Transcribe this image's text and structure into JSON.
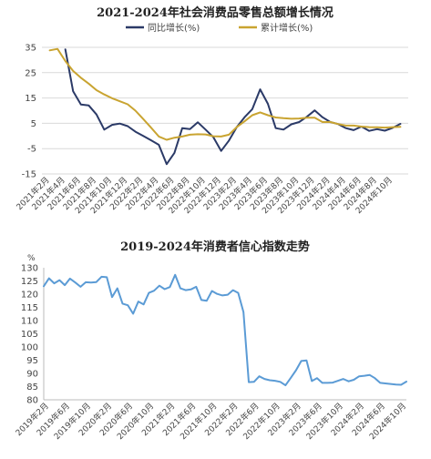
{
  "chart_data": [
    {
      "type": "line",
      "title": "2021-2024年社会消费品零售总额增长情况",
      "ylim": [
        -15,
        35
      ],
      "yticks": [
        -15,
        -5,
        5,
        15,
        25,
        35
      ],
      "grid": true,
      "legend_position": "top",
      "xtick_labels": [
        "2021年2月",
        "2021年4月",
        "2021年6月",
        "2021年8月",
        "2021年10月",
        "2021年12月",
        "2022年2月",
        "2022年4月",
        "2022年6月",
        "2022年8月",
        "2022年10月",
        "2022年12月",
        "2023年2月",
        "2023年4月",
        "2023年6月",
        "2023年8月",
        "2023年10月",
        "2023年12月",
        "2024年2月",
        "2024年4月",
        "2024年6月",
        "2024年8月",
        "2024年10月"
      ],
      "series": [
        {
          "name": "同比增长(%)",
          "color": "#2b3a67",
          "x": [
            "2021-04",
            "2021-05",
            "2021-06",
            "2021-07",
            "2021-08",
            "2021-09",
            "2021-10",
            "2021-11",
            "2021-12",
            "2022-01",
            "2022-02",
            "2022-03",
            "2022-04",
            "2022-05",
            "2022-06",
            "2022-07",
            "2022-08",
            "2022-09",
            "2022-10",
            "2022-11",
            "2022-12",
            "2023-01",
            "2023-02",
            "2023-03",
            "2023-04",
            "2023-05",
            "2023-06",
            "2023-07",
            "2023-08",
            "2023-09",
            "2023-10",
            "2023-11",
            "2023-12",
            "2024-01",
            "2024-02",
            "2024-03",
            "2024-04",
            "2024-05",
            "2024-06",
            "2024-07",
            "2024-08",
            "2024-09",
            "2024-10",
            "2024-11"
          ],
          "values": [
            34.2,
            17.7,
            12.4,
            12.1,
            8.5,
            2.5,
            4.4,
            4.9,
            3.9,
            1.7,
            0,
            -1.7,
            -3.5,
            -11.1,
            -6.7,
            3.1,
            2.7,
            5.4,
            2.5,
            -0.5,
            -5.9,
            -1.8,
            3.5,
            7.4,
            10.6,
            18.4,
            12.7,
            3.1,
            2.5,
            4.6,
            5.5,
            7.6,
            10.1,
            7.4,
            5.5,
            4.7,
            3.1,
            2.3,
            3.7,
            2.0,
            2.7,
            2.1,
            3.2,
            4.8
          ]
        },
        {
          "name": "累计增长(%)",
          "color": "#c9a431",
          "x": [
            "2021-02",
            "2021-03",
            "2021-04",
            "2021-05",
            "2021-06",
            "2021-07",
            "2021-08",
            "2021-09",
            "2021-10",
            "2021-11",
            "2021-12",
            "2022-01",
            "2022-02",
            "2022-03",
            "2022-04",
            "2022-05",
            "2022-06",
            "2022-07",
            "2022-08",
            "2022-09",
            "2022-10",
            "2022-11",
            "2022-12",
            "2023-01",
            "2023-02",
            "2023-03",
            "2023-04",
            "2023-05",
            "2023-06",
            "2023-07",
            "2023-08",
            "2023-09",
            "2023-10",
            "2023-11",
            "2023-12",
            "2024-01",
            "2024-02",
            "2024-03",
            "2024-04",
            "2024-05",
            "2024-06",
            "2024-07",
            "2024-08",
            "2024-09",
            "2024-10",
            "2024-11"
          ],
          "values": [
            33.8,
            34.4,
            29.6,
            25.7,
            23.0,
            20.7,
            18.1,
            16.4,
            14.9,
            13.7,
            12.5,
            10.0,
            6.7,
            3.3,
            -0.2,
            -1.5,
            -0.7,
            -0.2,
            0.5,
            0.7,
            0.6,
            -0.1,
            -0.2,
            0.5,
            3.5,
            5.8,
            8.2,
            9.3,
            8.2,
            7.3,
            7.0,
            6.8,
            6.9,
            7.2,
            7.2,
            5.5,
            5.5,
            4.7,
            4.1,
            4.1,
            3.7,
            3.5,
            3.4,
            3.3,
            3.5,
            3.6
          ]
        }
      ]
    },
    {
      "type": "line",
      "title": "2019-2024年消费者信心指数走势",
      "ylabel": "%",
      "ylim": [
        80,
        130
      ],
      "yticks": [
        80,
        85,
        90,
        95,
        100,
        105,
        110,
        115,
        120,
        125,
        130
      ],
      "grid": false,
      "xtick_labels": [
        "2019年2月",
        "2019年6月",
        "2019年10月",
        "2020年2月",
        "2020年6月",
        "2020年10月",
        "2021年2月",
        "2021年6月",
        "2021年10月",
        "2022年2月",
        "2022年6月",
        "2022年10月",
        "2023年2月",
        "2023年6月",
        "2023年10月",
        "2024年2月",
        "2024年6月",
        "2024年10月"
      ],
      "series": [
        {
          "name": "",
          "color": "#5b9bd5",
          "x": [
            "2019-01",
            "2019-02",
            "2019-03",
            "2019-04",
            "2019-05",
            "2019-06",
            "2019-07",
            "2019-08",
            "2019-09",
            "2019-10",
            "2019-11",
            "2019-12",
            "2020-01",
            "2020-02",
            "2020-03",
            "2020-04",
            "2020-05",
            "2020-06",
            "2020-07",
            "2020-08",
            "2020-09",
            "2020-10",
            "2020-11",
            "2020-12",
            "2021-01",
            "2021-02",
            "2021-03",
            "2021-04",
            "2021-05",
            "2021-06",
            "2021-07",
            "2021-08",
            "2021-09",
            "2021-10",
            "2021-11",
            "2021-12",
            "2022-01",
            "2022-02",
            "2022-03",
            "2022-04",
            "2022-05",
            "2022-06",
            "2022-07",
            "2022-08",
            "2022-09",
            "2022-10",
            "2022-11",
            "2022-12",
            "2023-01",
            "2023-02",
            "2023-03",
            "2023-04",
            "2023-05",
            "2023-06",
            "2023-07",
            "2023-08",
            "2023-09",
            "2023-10",
            "2023-11",
            "2023-12",
            "2024-01",
            "2024-02",
            "2024-03",
            "2024-04",
            "2024-05",
            "2024-06",
            "2024-07",
            "2024-08",
            "2024-09",
            "2024-10"
          ],
          "values": [
            123.0,
            126.0,
            124.1,
            125.3,
            123.4,
            125.9,
            124.4,
            122.8,
            124.5,
            124.4,
            124.6,
            126.6,
            126.4,
            118.9,
            122.2,
            116.4,
            115.8,
            112.6,
            117.2,
            116.1,
            120.5,
            121.3,
            123.2,
            121.9,
            122.7,
            127.3,
            122.2,
            121.5,
            121.8,
            122.8,
            117.8,
            117.5,
            121.2,
            120.1,
            119.5,
            119.8,
            121.5,
            120.5,
            113.2,
            86.7,
            86.8,
            88.9,
            87.9,
            87.4,
            87.2,
            86.8,
            85.5,
            88.3,
            91.2,
            94.7,
            94.9,
            87.1,
            88.2,
            86.4,
            86.4,
            86.5,
            87.2,
            87.9,
            87.0,
            87.6,
            88.9,
            89.1,
            89.4,
            88.2,
            86.4,
            86.2,
            86.0,
            85.8,
            85.7,
            86.9
          ]
        }
      ]
    }
  ]
}
